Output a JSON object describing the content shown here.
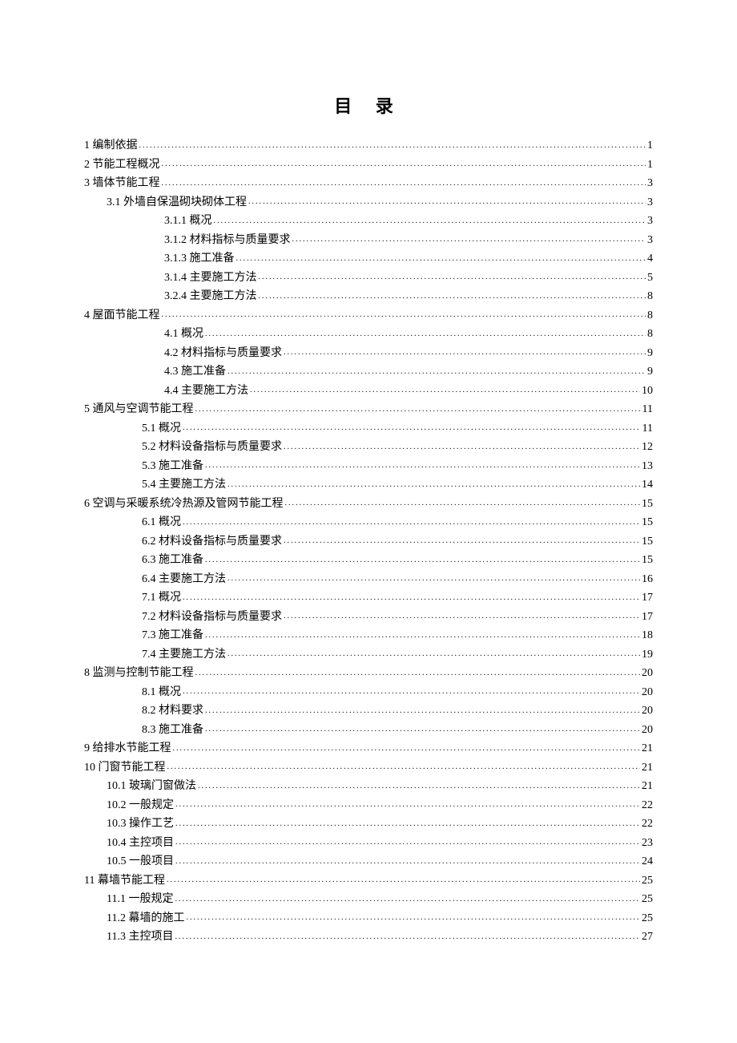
{
  "title": "目 录",
  "entries": [
    {
      "indent": "indent-0",
      "label": "1   编制依据",
      "page": "1"
    },
    {
      "indent": "indent-0",
      "label": "2   节能工程概况",
      "page": "1"
    },
    {
      "indent": "indent-0",
      "label": "3   墙体节能工程",
      "page": "3"
    },
    {
      "indent": "indent-1",
      "label": "3.1 外墙自保温砌块砌体工程",
      "page": "3"
    },
    {
      "indent": "indent-2b",
      "label": "3.1.1 概况",
      "page": "3"
    },
    {
      "indent": "indent-2b",
      "label": "3.1.2 材料指标与质量要求",
      "page": "3"
    },
    {
      "indent": "indent-2b",
      "label": "3.1.3 施工准备",
      "page": "4"
    },
    {
      "indent": "indent-2b",
      "label": "3.1.4 主要施工方法",
      "page": "5"
    },
    {
      "indent": "indent-2b",
      "label": "3.2.4 主要施工方法",
      "page": "8"
    },
    {
      "indent": "indent-0",
      "label": "4 屋面节能工程",
      "page": "8"
    },
    {
      "indent": "indent-2b",
      "label": "4.1 概况",
      "page": "8"
    },
    {
      "indent": "indent-2b",
      "label": "4.2 材料指标与质量要求",
      "page": "9"
    },
    {
      "indent": "indent-2b",
      "label": "4.3 施工准备",
      "page": "9"
    },
    {
      "indent": "indent-2b",
      "label": "4.4 主要施工方法",
      "page": "10"
    },
    {
      "indent": "indent-0",
      "label": "5 通风与空调节能工程",
      "page": "11"
    },
    {
      "indent": "indent-2",
      "label": "5.1 概况",
      "page": "11"
    },
    {
      "indent": "indent-2",
      "label": "5.2 材料设备指标与质量要求",
      "page": "12"
    },
    {
      "indent": "indent-2",
      "label": "5.3 施工准备",
      "page": "13"
    },
    {
      "indent": "indent-2",
      "label": "5.4 主要施工方法",
      "page": "14"
    },
    {
      "indent": "indent-0",
      "label": "6 空调与采暖系统冷热源及管网节能工程",
      "page": "15"
    },
    {
      "indent": "indent-2",
      "label": "6.1 概况",
      "page": "15"
    },
    {
      "indent": "indent-2",
      "label": "6.2 材料设备指标与质量要求",
      "page": "15"
    },
    {
      "indent": "indent-2",
      "label": "6.3 施工准备",
      "page": "15"
    },
    {
      "indent": "indent-2",
      "label": "6.4 主要施工方法",
      "page": "16"
    },
    {
      "indent": "indent-2",
      "label": "7.1 概况",
      "page": "17"
    },
    {
      "indent": "indent-2",
      "label": "7.2 材料设备指标与质量要求",
      "page": "17"
    },
    {
      "indent": "indent-2",
      "label": "7.3 施工准备",
      "page": "18"
    },
    {
      "indent": "indent-2",
      "label": "7.4 主要施工方法",
      "page": "19"
    },
    {
      "indent": "indent-0",
      "label": "8 监测与控制节能工程",
      "page": "20"
    },
    {
      "indent": "indent-2",
      "label": "8.1 概况",
      "page": "20"
    },
    {
      "indent": "indent-2",
      "label": "8.2 材料要求",
      "page": "20"
    },
    {
      "indent": "indent-2",
      "label": "8.3 施工准备",
      "page": "20"
    },
    {
      "indent": "indent-0",
      "label": "9 给排水节能工程",
      "page": "21"
    },
    {
      "indent": "indent-0",
      "label": "10   门窗节能工程",
      "page": "21"
    },
    {
      "indent": "indent-1",
      "label": "10.1   玻璃门窗做法",
      "page": "21"
    },
    {
      "indent": "indent-1",
      "label": "10.2   一般规定",
      "page": "22"
    },
    {
      "indent": "indent-1",
      "label": "10.3   操作工艺",
      "page": "22"
    },
    {
      "indent": "indent-1",
      "label": "10.4   主控项目",
      "page": "23"
    },
    {
      "indent": "indent-1",
      "label": "10.5   一般项目",
      "page": "24"
    },
    {
      "indent": "indent-0",
      "label": "11   幕墙节能工程",
      "page": "25"
    },
    {
      "indent": "indent-1",
      "label": "11.1   一般规定",
      "page": "25"
    },
    {
      "indent": "indent-1",
      "label": "11.2   幕墙的施工",
      "page": "25"
    },
    {
      "indent": "indent-1",
      "label": "11.3   主控项目",
      "page": "27"
    }
  ]
}
